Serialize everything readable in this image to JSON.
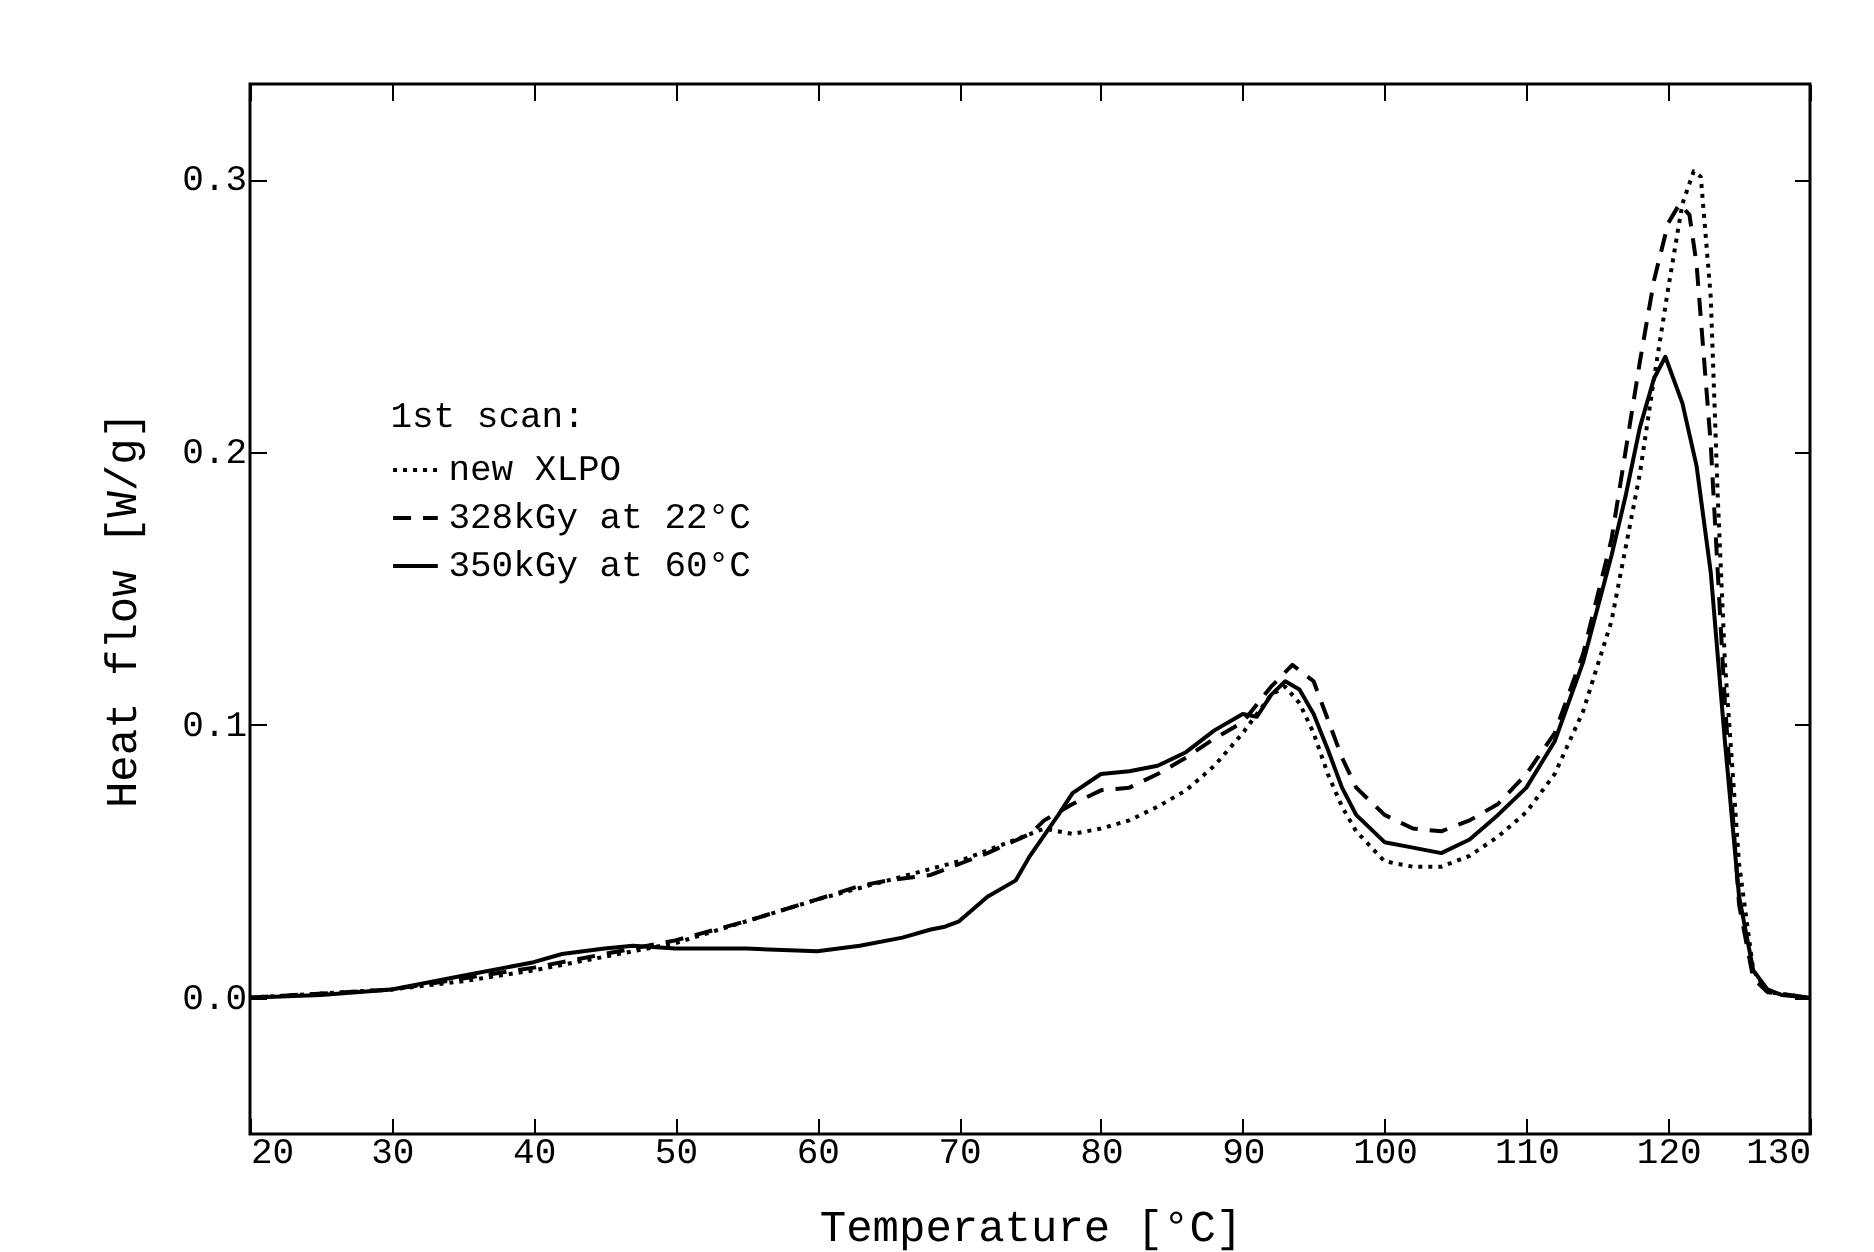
{
  "chart_data": {
    "type": "line",
    "xlabel": "Temperature [°C]",
    "ylabel": "Heat flow [W/g]",
    "legend_title": "1st scan:",
    "legend": "left",
    "xlim": [
      20,
      130
    ],
    "xticks": [
      20,
      30,
      40,
      50,
      60,
      70,
      80,
      90,
      100,
      110,
      120,
      130
    ],
    "ylim": [
      -0.05,
      0.335
    ],
    "yticks": [
      {
        "value": 0,
        "label": "0.0"
      },
      0.1,
      0.2,
      0.3
    ],
    "grid": false,
    "series": [
      {
        "name": "new XLPO",
        "color": "#000000",
        "line_style": "dotted",
        "x": [
          20,
          30,
          35,
          40,
          45,
          50,
          55,
          60,
          65,
          70,
          73,
          76,
          78,
          80,
          82,
          84,
          86,
          88,
          90,
          92,
          93,
          94,
          95,
          96,
          97,
          98,
          100,
          102,
          104,
          106,
          108,
          110,
          112,
          114,
          116,
          118,
          119,
          120,
          121,
          121.8,
          122.3,
          123,
          123.5,
          124,
          125,
          126,
          127,
          130
        ],
        "values": [
          0,
          0.003,
          0.006,
          0.01,
          0.015,
          0.02,
          0.028,
          0.036,
          0.043,
          0.05,
          0.056,
          0.062,
          0.06,
          0.062,
          0.065,
          0.07,
          0.076,
          0.085,
          0.097,
          0.111,
          0.114,
          0.108,
          0.097,
          0.082,
          0.07,
          0.061,
          0.05,
          0.048,
          0.048,
          0.052,
          0.059,
          0.068,
          0.082,
          0.105,
          0.138,
          0.192,
          0.227,
          0.26,
          0.291,
          0.303,
          0.301,
          0.257,
          0.183,
          0.123,
          0.049,
          0.01,
          0.002,
          0
        ]
      },
      {
        "name": "328kGy at 22°C",
        "color": "#000000",
        "line_style": "dashed",
        "x": [
          20,
          30,
          35,
          40,
          45,
          50,
          55,
          60,
          63,
          65,
          68,
          70,
          72,
          75,
          76,
          78,
          80,
          82,
          84,
          86,
          88,
          90,
          92,
          93.5,
          95,
          96,
          97,
          98,
          100,
          102,
          104,
          106,
          108,
          110,
          112,
          114,
          116,
          118,
          119,
          120,
          120.8,
          121.5,
          122,
          123,
          124,
          125,
          126,
          127,
          130
        ],
        "values": [
          0,
          0.003,
          0.007,
          0.011,
          0.016,
          0.021,
          0.028,
          0.036,
          0.041,
          0.043,
          0.045,
          0.049,
          0.053,
          0.06,
          0.065,
          0.071,
          0.076,
          0.077,
          0.082,
          0.088,
          0.095,
          0.101,
          0.114,
          0.122,
          0.116,
          0.102,
          0.088,
          0.077,
          0.067,
          0.062,
          0.061,
          0.065,
          0.071,
          0.082,
          0.097,
          0.126,
          0.168,
          0.233,
          0.263,
          0.284,
          0.291,
          0.287,
          0.269,
          0.203,
          0.108,
          0.034,
          0.007,
          0.002,
          0
        ]
      },
      {
        "name": "350kGy at 60°C",
        "color": "#000000",
        "line_style": "solid",
        "x": [
          20,
          25,
          30,
          35,
          40,
          42,
          45,
          47,
          50,
          55,
          60,
          63,
          66,
          68,
          69,
          70,
          72,
          74,
          75,
          77,
          78,
          80,
          82,
          84,
          86,
          88,
          90,
          91,
          92,
          93,
          94,
          95,
          96,
          97,
          98,
          100,
          102,
          104,
          106,
          108,
          110,
          112,
          114,
          116,
          117,
          118,
          119,
          119.8,
          121,
          122,
          123,
          124,
          125,
          126,
          127,
          128,
          130
        ],
        "values": [
          0,
          0.001,
          0.003,
          0.008,
          0.013,
          0.016,
          0.018,
          0.019,
          0.018,
          0.018,
          0.017,
          0.019,
          0.022,
          0.025,
          0.026,
          0.028,
          0.037,
          0.043,
          0.052,
          0.067,
          0.075,
          0.082,
          0.083,
          0.085,
          0.09,
          0.098,
          0.104,
          0.103,
          0.111,
          0.116,
          0.113,
          0.104,
          0.091,
          0.077,
          0.067,
          0.057,
          0.055,
          0.053,
          0.058,
          0.067,
          0.077,
          0.094,
          0.123,
          0.162,
          0.184,
          0.209,
          0.227,
          0.235,
          0.218,
          0.195,
          0.156,
          0.094,
          0.037,
          0.01,
          0.003,
          0.001,
          0
        ]
      }
    ]
  }
}
